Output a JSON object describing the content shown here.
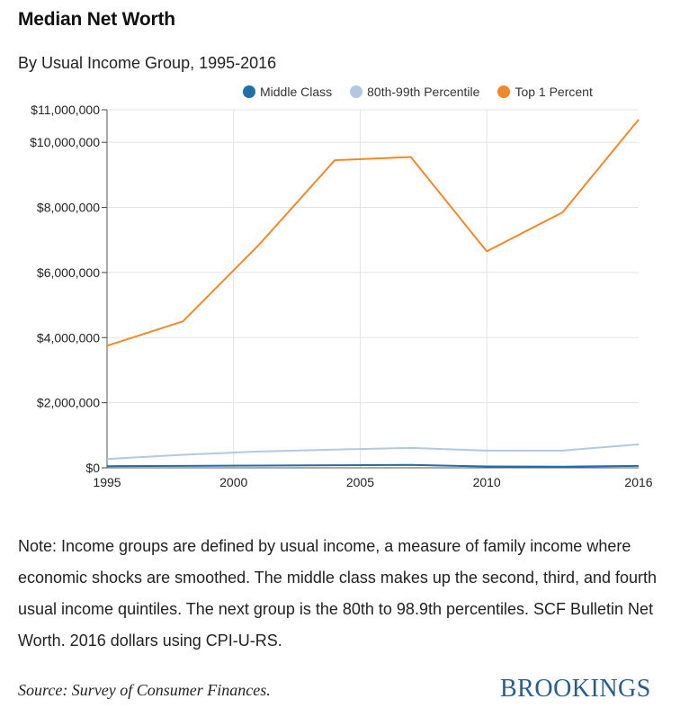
{
  "header": {
    "title": "Median Net Worth",
    "subtitle": "By Usual Income Group, 1995-2016"
  },
  "chart_data": {
    "type": "line",
    "x": [
      1995,
      1998,
      2001,
      2004,
      2007,
      2010,
      2013,
      2016
    ],
    "x_ticks": [
      "1995",
      "2000",
      "2005",
      "2010",
      "2016"
    ],
    "x_tick_values": [
      1995,
      2000,
      2005,
      2010,
      2016
    ],
    "y_ticks": [
      "$0",
      "$2,000,000",
      "$4,000,000",
      "$6,000,000",
      "$8,000,000",
      "$10,000,000",
      "$11,000,000"
    ],
    "y_tick_values": [
      0,
      2000000,
      4000000,
      6000000,
      8000000,
      10000000,
      11000000
    ],
    "xlim": [
      1995,
      2016
    ],
    "ylim": [
      0,
      11000000
    ],
    "grid": "vertical-and-horizontal",
    "legend_position": "top",
    "series": [
      {
        "name": "Middle Class",
        "color": "#1f6fa8",
        "values": [
          50000,
          60000,
          70000,
          80000,
          90000,
          40000,
          35000,
          60000
        ]
      },
      {
        "name": "80th-99th Percentile",
        "color": "#b3c8e2",
        "values": [
          270000,
          400000,
          500000,
          560000,
          610000,
          530000,
          530000,
          720000
        ]
      },
      {
        "name": "Top 1 Percent",
        "color": "#f0892a",
        "values": [
          3750000,
          4500000,
          6850000,
          9450000,
          9550000,
          6650000,
          7850000,
          10700000
        ]
      }
    ]
  },
  "note": "Note: Income groups are defined by usual income, a measure of family income where economic shocks are smoothed. The middle class makes up the second, third, and fourth usual income quintiles. The next group is the 80th to 98.9th percentiles. SCF Bulletin Net Worth. 2016 dollars using CPI-U-RS.",
  "source": "Source: Survey of Consumer Finances.",
  "brand": "BROOKINGS"
}
